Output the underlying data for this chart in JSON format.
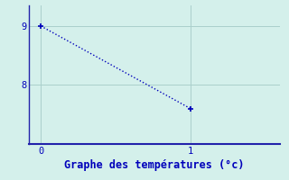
{
  "x": [
    0,
    1
  ],
  "y": [
    9,
    7.6
  ],
  "line_color": "#0000bb",
  "marker_style": "+",
  "marker_size": 4,
  "background_color": "#d4f0eb",
  "grid_color": "#aacfcc",
  "axis_color": "#2222aa",
  "title": "Graphe des températures (°c)",
  "title_color": "#0000bb",
  "title_fontsize": 8.5,
  "xlim": [
    -0.08,
    1.6
  ],
  "ylim": [
    7.0,
    9.35
  ],
  "yticks": [
    8,
    9
  ],
  "xticks": [
    0,
    1
  ],
  "tick_color": "#0000bb",
  "tick_fontsize": 7.5
}
